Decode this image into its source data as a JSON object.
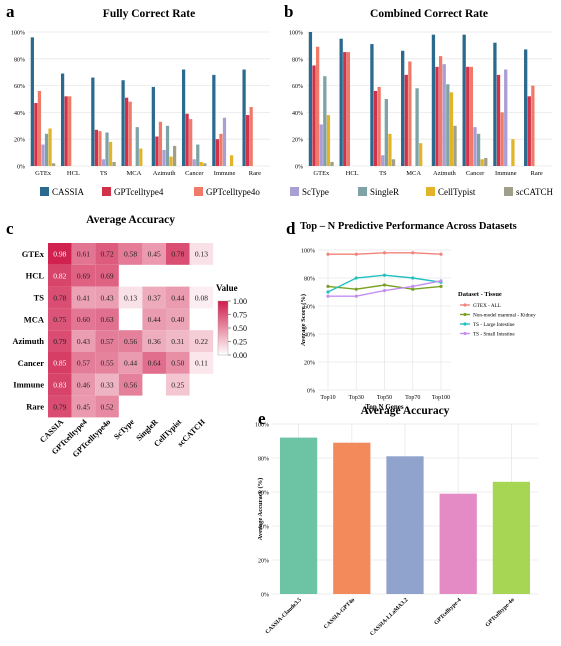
{
  "colors": {
    "CASSIA": "#2b6a8f",
    "GPTcelltype4": "#d1324a",
    "GPTcelltype4o": "#f07a6a",
    "ScType": "#a99fd4",
    "SingleR": "#7ea2a6",
    "CellTypist": "#e2b42a",
    "scCATCH": "#a0a08a",
    "heat_high": "#d01c4b",
    "heat_low": "#ffffff",
    "grid": "#e8e8e8",
    "GTEX - ALL": "#f2837a",
    "Non-model mammal - Kidney": "#7aa024",
    "TS - Large Intestine": "#22c0c0",
    "TS - Small Intestine": "#c48ef0",
    "CASSIA-Claude3.5": "#6cc4a4",
    "CASSIA-GPT4o": "#f28a5c",
    "CASSIA-LLaMA3.2": "#8fa3cc",
    "GPTcelltype-4": "#e48ac4",
    "GPTcelltype-4o": "#a6d654"
  },
  "chart_data": [
    {
      "id": "a",
      "panel_label": "a",
      "type": "bar",
      "title": "Fully Correct Rate",
      "categories": [
        "GTEx",
        "HCL",
        "TS",
        "MCA",
        "Azimuth",
        "Cancer",
        "Immune",
        "Rare"
      ],
      "ylim": [
        0,
        100
      ],
      "yticks": [
        "0%",
        "20%",
        "40%",
        "60%",
        "80%",
        "100%"
      ],
      "grid": true,
      "series": [
        {
          "name": "CASSIA",
          "values": [
            96,
            69,
            66,
            64,
            59,
            72,
            68,
            72
          ]
        },
        {
          "name": "GPTcelltype4",
          "values": [
            47,
            52,
            27,
            51,
            22,
            39,
            20,
            38
          ]
        },
        {
          "name": "GPTcelltype4o",
          "values": [
            56,
            52,
            26,
            48,
            33,
            35,
            24,
            44
          ]
        },
        {
          "name": "ScType",
          "values": [
            16,
            null,
            5,
            null,
            12,
            5,
            36,
            null
          ]
        },
        {
          "name": "SingleR",
          "values": [
            24,
            null,
            25,
            29,
            30,
            16,
            null,
            null
          ]
        },
        {
          "name": "CellTypist",
          "values": [
            28,
            null,
            18,
            13,
            7,
            3,
            8,
            null
          ]
        },
        {
          "name": "scCATCH",
          "values": [
            2,
            null,
            3,
            null,
            15,
            2,
            null,
            null
          ]
        }
      ]
    },
    {
      "id": "b",
      "panel_label": "b",
      "type": "bar",
      "title": "Combined Correct Rate",
      "categories": [
        "GTEx",
        "HCL",
        "TS",
        "MCA",
        "Azimuth",
        "Cancer",
        "Immune",
        "Rare"
      ],
      "ylim": [
        0,
        100
      ],
      "yticks": [
        "0%",
        "20%",
        "40%",
        "60%",
        "80%",
        "100%"
      ],
      "grid": true,
      "series": [
        {
          "name": "CASSIA",
          "values": [
            100,
            95,
            91,
            86,
            98,
            98,
            92,
            87
          ]
        },
        {
          "name": "GPTcelltype4",
          "values": [
            75,
            85,
            56,
            68,
            74,
            74,
            68,
            52
          ]
        },
        {
          "name": "GPTcelltype4o",
          "values": [
            89,
            85,
            59,
            78,
            82,
            74,
            40,
            60
          ]
        },
        {
          "name": "ScType",
          "values": [
            31,
            null,
            8,
            null,
            76,
            29,
            72,
            null
          ]
        },
        {
          "name": "SingleR",
          "values": [
            67,
            null,
            50,
            58,
            61,
            24,
            null,
            null
          ]
        },
        {
          "name": "CellTypist",
          "values": [
            38,
            null,
            24,
            17,
            55,
            5,
            20,
            null
          ]
        },
        {
          "name": "scCATCH",
          "values": [
            3,
            null,
            5,
            null,
            30,
            6,
            null,
            null
          ]
        }
      ]
    },
    {
      "id": "c",
      "panel_label": "c",
      "type": "heatmap",
      "title": "Average Accuracy",
      "rows": [
        "GTEx",
        "HCL",
        "TS",
        "MCA",
        "Azimuth",
        "Cancer",
        "Immune",
        "Rare"
      ],
      "columns": [
        "CASSIA",
        "GPTcelltype4",
        "GPTcelltype4o",
        "ScType",
        "SingleR",
        "CellTypist",
        "scCATCH"
      ],
      "values": [
        [
          0.98,
          0.61,
          0.72,
          0.58,
          0.45,
          0.78,
          0.13
        ],
        [
          0.82,
          0.69,
          0.69,
          null,
          null,
          null,
          null
        ],
        [
          0.78,
          0.41,
          0.43,
          0.13,
          0.37,
          0.44,
          0.08
        ],
        [
          0.75,
          0.6,
          0.63,
          null,
          0.44,
          0.4,
          null
        ],
        [
          0.79,
          0.43,
          0.57,
          0.56,
          0.36,
          0.31,
          0.22
        ],
        [
          0.85,
          0.57,
          0.55,
          0.44,
          0.64,
          0.5,
          0.11
        ],
        [
          0.83,
          0.46,
          0.33,
          0.56,
          null,
          0.25,
          null
        ],
        [
          0.79,
          0.45,
          0.52,
          null,
          null,
          null,
          null
        ]
      ],
      "legend": {
        "title": "Value",
        "ticks": [
          "1.00",
          "0.75",
          "0.50",
          "0.25",
          "0.00"
        ],
        "range": [
          0,
          1
        ]
      }
    },
    {
      "id": "d",
      "panel_label": "d",
      "type": "line",
      "title": "Top – N Predictive Performance Across Datasets",
      "xlabel": "Top N Genes",
      "ylabel": "Average Score (%)",
      "categories": [
        "Top10",
        "Top30",
        "Top50",
        "Top70",
        "Top100"
      ],
      "ylim": [
        0,
        100
      ],
      "yticks": [
        "0%",
        "20%",
        "40%",
        "60%",
        "80%",
        "100%"
      ],
      "grid": true,
      "legend": {
        "title": "Dataset - Tissue",
        "position": "right"
      },
      "series": [
        {
          "name": "GTEX - ALL",
          "values": [
            97,
            97,
            98,
            98,
            97
          ]
        },
        {
          "name": "Non-model mammal - Kidney",
          "values": [
            74,
            72,
            75,
            72,
            74
          ]
        },
        {
          "name": "TS - Large Intestine",
          "values": [
            70,
            80,
            82,
            80,
            77
          ]
        },
        {
          "name": "TS - Small Intestine",
          "values": [
            67,
            67,
            71,
            74,
            78
          ]
        }
      ]
    },
    {
      "id": "e",
      "panel_label": "e",
      "type": "bar",
      "title": "Average Accuracy",
      "ylabel": "Average Accuracy (%)",
      "categories": [
        "CASSIA-Claude3.5",
        "CASSIA-GPT4o",
        "CASSIA-LLaMA3.2",
        "GPTcelltype-4",
        "GPTcelltype-4o"
      ],
      "values": [
        92,
        89,
        81,
        59,
        66
      ],
      "ylim": [
        0,
        100
      ],
      "yticks": [
        "0%",
        "20%",
        "40%",
        "60%",
        "80%",
        "100%"
      ],
      "grid": true
    }
  ],
  "shared_legend": [
    "CASSIA",
    "GPTcelltype4",
    "GPTcelltype4o",
    "ScType",
    "SingleR",
    "CellTypist",
    "scCATCH"
  ]
}
